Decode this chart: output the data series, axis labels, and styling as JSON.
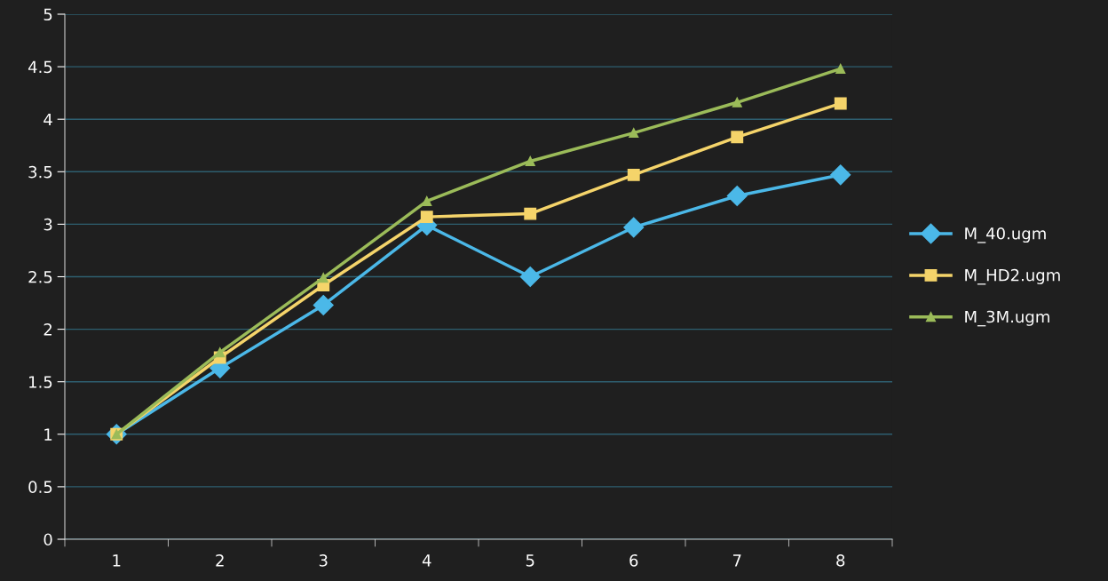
{
  "chart_data": {
    "type": "line",
    "categories": [
      "1",
      "2",
      "3",
      "4",
      "5",
      "6",
      "7",
      "8"
    ],
    "series": [
      {
        "name": "M_40.ugm",
        "color": "#4bb8e8",
        "marker": "diamond",
        "values": [
          1.0,
          1.63,
          2.23,
          2.99,
          2.5,
          2.97,
          3.27,
          3.47
        ]
      },
      {
        "name": "M_HD2.ugm",
        "color": "#f5d46a",
        "marker": "square",
        "values": [
          1.0,
          1.73,
          2.42,
          3.07,
          3.1,
          3.47,
          3.83,
          4.15
        ]
      },
      {
        "name": "M_3M.ugm",
        "color": "#9bbb59",
        "marker": "triangle",
        "values": [
          1.0,
          1.78,
          2.49,
          3.22,
          3.6,
          3.87,
          4.16,
          4.48
        ]
      }
    ],
    "ylim": [
      0,
      5
    ],
    "yticks": [
      0,
      0.5,
      1,
      1.5,
      2,
      2.5,
      3,
      3.5,
      4,
      4.5,
      5
    ],
    "grid": "y",
    "legend": "right",
    "line_style": "solid"
  }
}
